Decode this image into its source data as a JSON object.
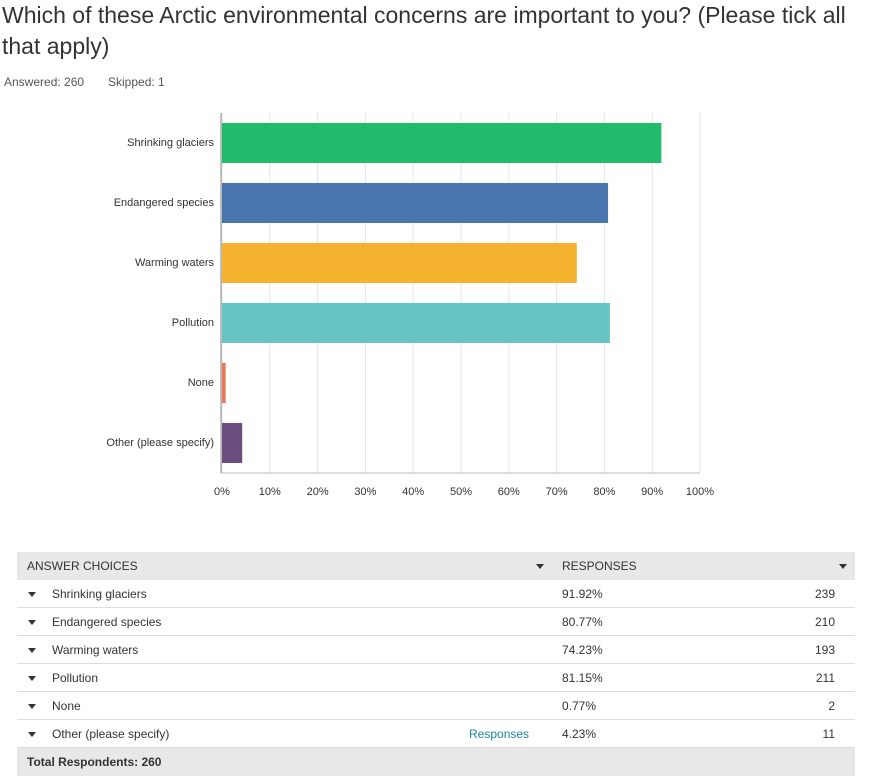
{
  "header": {
    "title": "Which of these Arctic environmental concerns are important to you? (Please tick all that apply)",
    "answered": "Answered: 260",
    "skipped": "Skipped: 1"
  },
  "chart_data": {
    "type": "hbar",
    "categories": [
      "Shrinking glaciers",
      "Endangered species",
      "Warming waters",
      "Pollution",
      "None",
      "Other (please specify)"
    ],
    "values": [
      91.92,
      80.77,
      74.23,
      81.15,
      0.77,
      4.23
    ],
    "colors": [
      "#22bc6c",
      "#4a74ad",
      "#f5b22f",
      "#66c4c5",
      "#e8775a",
      "#6b4d7f"
    ],
    "xlim": [
      0,
      100
    ],
    "xticks": [
      {
        "value": 0,
        "label": "0%"
      },
      {
        "value": 10,
        "label": "10%"
      },
      {
        "value": 20,
        "label": "20%"
      },
      {
        "value": 30,
        "label": "30%"
      },
      {
        "value": 40,
        "label": "40%"
      },
      {
        "value": 50,
        "label": "50%"
      },
      {
        "value": 60,
        "label": "60%"
      },
      {
        "value": 70,
        "label": "70%"
      },
      {
        "value": 80,
        "label": "80%"
      },
      {
        "value": 90,
        "label": "90%"
      },
      {
        "value": 100,
        "label": "100%"
      }
    ],
    "grid": true
  },
  "table": {
    "columns": [
      "ANSWER CHOICES",
      "RESPONSES"
    ],
    "rows": [
      {
        "choice": "Shrinking glaciers",
        "percent": "91.92%",
        "count": "239"
      },
      {
        "choice": "Endangered species",
        "percent": "80.77%",
        "count": "210"
      },
      {
        "choice": "Warming waters",
        "percent": "74.23%",
        "count": "193"
      },
      {
        "choice": "Pollution",
        "percent": "81.15%",
        "count": "211"
      },
      {
        "choice": "None",
        "percent": "0.77%",
        "count": "2"
      },
      {
        "choice": "Other (please specify)",
        "link": "Responses",
        "percent": "4.23%",
        "count": "11"
      }
    ],
    "total": "Total Respondents: 260"
  }
}
